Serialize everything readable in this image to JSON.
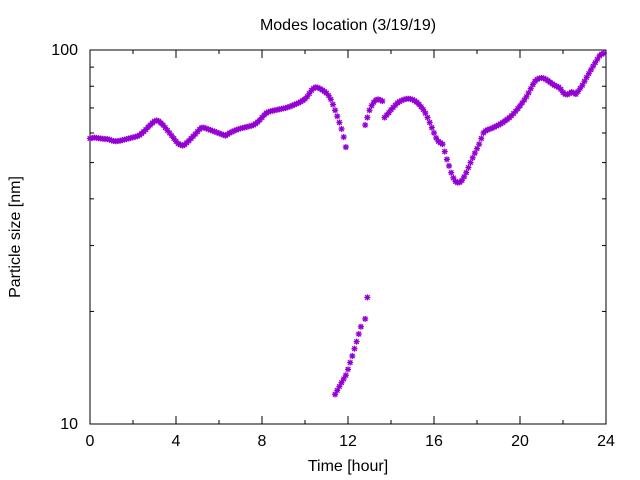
{
  "chart_data": {
    "type": "scatter",
    "title": "Modes location (3/19/19)",
    "xlabel": "Time [hour]",
    "ylabel": "Particle size [nm]",
    "xlim": [
      0,
      24
    ],
    "ylim": [
      10,
      100
    ],
    "y_scale": "log",
    "grid": false,
    "legend": "none",
    "marker_color": "#9400d3",
    "marker_shape": "asterisk",
    "x_ticks": [
      "0",
      "4",
      "8",
      "12",
      "16",
      "20",
      "24"
    ],
    "y_ticks": [
      "10",
      "100"
    ],
    "series": [
      {
        "points": [
          [
            0.0,
            58.0
          ],
          [
            0.1,
            58.2
          ],
          [
            0.2,
            58.3
          ],
          [
            0.3,
            58.2
          ],
          [
            0.4,
            58.1
          ],
          [
            0.5,
            58.0
          ],
          [
            0.6,
            57.9
          ],
          [
            0.7,
            57.8
          ],
          [
            0.8,
            57.8
          ],
          [
            0.9,
            57.6
          ],
          [
            1.0,
            57.3
          ],
          [
            1.1,
            57.1
          ],
          [
            1.2,
            57.0
          ],
          [
            1.3,
            57.1
          ],
          [
            1.4,
            57.2
          ],
          [
            1.5,
            57.4
          ],
          [
            1.6,
            57.6
          ],
          [
            1.7,
            57.8
          ],
          [
            1.8,
            58.0
          ],
          [
            1.9,
            58.2
          ],
          [
            2.0,
            58.4
          ],
          [
            2.1,
            58.6
          ],
          [
            2.2,
            58.8
          ],
          [
            2.3,
            59.2
          ],
          [
            2.4,
            59.8
          ],
          [
            2.5,
            60.5
          ],
          [
            2.6,
            61.3
          ],
          [
            2.7,
            62.2
          ],
          [
            2.8,
            63.0
          ],
          [
            2.9,
            63.8
          ],
          [
            3.0,
            64.5
          ],
          [
            3.1,
            64.8
          ],
          [
            3.2,
            64.5
          ],
          [
            3.3,
            63.8
          ],
          [
            3.4,
            63.0
          ],
          [
            3.5,
            62.0
          ],
          [
            3.6,
            61.0
          ],
          [
            3.7,
            60.0
          ],
          [
            3.8,
            59.0
          ],
          [
            3.9,
            58.0
          ],
          [
            4.0,
            57.0
          ],
          [
            4.1,
            56.2
          ],
          [
            4.2,
            55.8
          ],
          [
            4.3,
            55.5
          ],
          [
            4.4,
            55.8
          ],
          [
            4.5,
            56.5
          ],
          [
            4.6,
            57.2
          ],
          [
            4.7,
            58.0
          ],
          [
            4.8,
            58.8
          ],
          [
            4.9,
            59.6
          ],
          [
            5.0,
            60.5
          ],
          [
            5.1,
            61.4
          ],
          [
            5.2,
            62.0
          ],
          [
            5.3,
            62.0
          ],
          [
            5.4,
            61.7
          ],
          [
            5.5,
            61.4
          ],
          [
            5.6,
            61.1
          ],
          [
            5.7,
            60.8
          ],
          [
            5.8,
            60.5
          ],
          [
            5.9,
            60.2
          ],
          [
            6.0,
            59.9
          ],
          [
            6.1,
            59.6
          ],
          [
            6.2,
            59.3
          ],
          [
            6.3,
            59.0
          ],
          [
            6.4,
            59.5
          ],
          [
            6.5,
            60.0
          ],
          [
            6.6,
            60.4
          ],
          [
            6.7,
            60.8
          ],
          [
            6.8,
            61.1
          ],
          [
            6.9,
            61.4
          ],
          [
            7.0,
            61.7
          ],
          [
            7.1,
            61.9
          ],
          [
            7.2,
            62.1
          ],
          [
            7.3,
            62.3
          ],
          [
            7.4,
            62.5
          ],
          [
            7.5,
            62.7
          ],
          [
            7.6,
            63.0
          ],
          [
            7.7,
            63.5
          ],
          [
            7.8,
            64.2
          ],
          [
            7.9,
            65.0
          ],
          [
            8.0,
            66.0
          ],
          [
            8.1,
            67.0
          ],
          [
            8.2,
            67.8
          ],
          [
            8.3,
            68.3
          ],
          [
            8.4,
            68.6
          ],
          [
            8.5,
            68.8
          ],
          [
            8.6,
            69.0
          ],
          [
            8.7,
            69.2
          ],
          [
            8.8,
            69.4
          ],
          [
            8.9,
            69.6
          ],
          [
            9.0,
            69.8
          ],
          [
            9.1,
            70.0
          ],
          [
            9.2,
            70.3
          ],
          [
            9.3,
            70.6
          ],
          [
            9.4,
            71.0
          ],
          [
            9.5,
            71.4
          ],
          [
            9.6,
            71.8
          ],
          [
            9.7,
            72.2
          ],
          [
            9.8,
            72.7
          ],
          [
            9.9,
            73.3
          ],
          [
            10.0,
            74.0
          ],
          [
            10.1,
            75.0
          ],
          [
            10.2,
            76.5
          ],
          [
            10.3,
            78.0
          ],
          [
            10.4,
            79.0
          ],
          [
            10.5,
            79.5
          ],
          [
            10.6,
            79.3
          ],
          [
            10.7,
            78.8
          ],
          [
            10.8,
            78.2
          ],
          [
            10.9,
            77.5
          ],
          [
            11.0,
            76.7
          ],
          [
            11.1,
            75.5
          ],
          [
            11.2,
            73.8
          ],
          [
            11.3,
            71.5
          ],
          [
            11.4,
            69.0
          ],
          [
            11.5,
            66.5
          ],
          [
            11.6,
            64.0
          ],
          [
            11.7,
            61.5
          ],
          [
            11.8,
            58.5
          ],
          [
            11.9,
            55.0
          ],
          [
            11.4,
            12.0
          ],
          [
            11.5,
            12.3
          ],
          [
            11.6,
            12.6
          ],
          [
            11.7,
            12.9
          ],
          [
            11.8,
            13.2
          ],
          [
            11.9,
            13.5
          ],
          [
            12.0,
            14.0
          ],
          [
            12.1,
            14.6
          ],
          [
            12.2,
            15.2
          ],
          [
            12.3,
            15.9
          ],
          [
            12.4,
            16.6
          ],
          [
            12.5,
            17.4
          ],
          [
            12.6,
            18.2
          ],
          [
            12.8,
            19.1
          ],
          [
            12.9,
            21.8
          ],
          [
            12.8,
            63.0
          ],
          [
            12.9,
            66.0
          ],
          [
            13.0,
            69.0
          ],
          [
            13.1,
            71.0
          ],
          [
            13.2,
            72.5
          ],
          [
            13.3,
            73.5
          ],
          [
            13.4,
            73.8
          ],
          [
            13.5,
            73.5
          ],
          [
            13.6,
            73.0
          ],
          [
            13.7,
            66.0
          ],
          [
            13.8,
            67.0
          ],
          [
            13.9,
            68.0
          ],
          [
            14.0,
            69.2
          ],
          [
            14.1,
            70.2
          ],
          [
            14.2,
            71.2
          ],
          [
            14.3,
            72.2
          ],
          [
            14.4,
            72.8
          ],
          [
            14.5,
            73.3
          ],
          [
            14.6,
            73.7
          ],
          [
            14.7,
            74.0
          ],
          [
            14.8,
            74.1
          ],
          [
            14.9,
            74.0
          ],
          [
            15.0,
            73.7
          ],
          [
            15.1,
            73.2
          ],
          [
            15.2,
            72.5
          ],
          [
            15.3,
            71.6
          ],
          [
            15.4,
            70.5
          ],
          [
            15.5,
            69.3
          ],
          [
            15.6,
            67.8
          ],
          [
            15.7,
            66.0
          ],
          [
            15.8,
            64.0
          ],
          [
            15.9,
            62.0
          ],
          [
            16.0,
            60.0
          ],
          [
            16.1,
            58.2
          ],
          [
            16.2,
            57.0
          ],
          [
            16.3,
            56.5
          ],
          [
            16.4,
            56.0
          ],
          [
            16.5,
            53.5
          ],
          [
            16.6,
            51.0
          ],
          [
            16.7,
            49.0
          ],
          [
            16.8,
            47.0
          ],
          [
            16.9,
            45.5
          ],
          [
            17.0,
            44.5
          ],
          [
            17.1,
            44.2
          ],
          [
            17.2,
            44.3
          ],
          [
            17.3,
            44.8
          ],
          [
            17.4,
            45.8
          ],
          [
            17.5,
            47.0
          ],
          [
            17.6,
            48.5
          ],
          [
            17.7,
            50.0
          ],
          [
            17.8,
            51.5
          ],
          [
            17.9,
            53.0
          ],
          [
            18.0,
            54.5
          ],
          [
            18.1,
            56.0
          ],
          [
            18.2,
            58.0
          ],
          [
            18.3,
            60.0
          ],
          [
            18.4,
            60.8
          ],
          [
            18.5,
            61.2
          ],
          [
            18.6,
            61.5
          ],
          [
            18.7,
            61.8
          ],
          [
            18.8,
            62.2
          ],
          [
            18.9,
            62.6
          ],
          [
            19.0,
            63.0
          ],
          [
            19.1,
            63.5
          ],
          [
            19.2,
            64.0
          ],
          [
            19.3,
            64.6
          ],
          [
            19.4,
            65.2
          ],
          [
            19.5,
            65.9
          ],
          [
            19.6,
            66.7
          ],
          [
            19.7,
            67.6
          ],
          [
            19.8,
            68.6
          ],
          [
            19.9,
            69.7
          ],
          [
            20.0,
            70.9
          ],
          [
            20.1,
            72.2
          ],
          [
            20.2,
            73.5
          ],
          [
            20.3,
            75.0
          ],
          [
            20.4,
            76.8
          ],
          [
            20.5,
            78.8
          ],
          [
            20.6,
            80.8
          ],
          [
            20.7,
            82.5
          ],
          [
            20.8,
            83.5
          ],
          [
            20.9,
            84.0
          ],
          [
            21.0,
            84.2
          ],
          [
            21.1,
            84.0
          ],
          [
            21.2,
            83.5
          ],
          [
            21.3,
            82.8
          ],
          [
            21.4,
            82.0
          ],
          [
            21.5,
            81.2
          ],
          [
            21.6,
            80.5
          ],
          [
            21.7,
            80.0
          ],
          [
            21.8,
            79.5
          ],
          [
            21.9,
            78.5
          ],
          [
            22.0,
            77.0
          ],
          [
            22.1,
            76.2
          ],
          [
            22.2,
            76.0
          ],
          [
            22.3,
            76.5
          ],
          [
            22.4,
            77.2
          ],
          [
            22.5,
            76.8
          ],
          [
            22.6,
            76.2
          ],
          [
            22.7,
            77.5
          ],
          [
            22.8,
            79.0
          ],
          [
            22.9,
            80.5
          ],
          [
            23.0,
            82.5
          ],
          [
            23.1,
            84.5
          ],
          [
            23.2,
            86.5
          ],
          [
            23.3,
            88.5
          ],
          [
            23.4,
            90.5
          ],
          [
            23.5,
            92.5
          ],
          [
            23.6,
            94.5
          ],
          [
            23.7,
            96.5
          ],
          [
            23.8,
            97.5
          ],
          [
            23.9,
            98.0
          ]
        ]
      }
    ]
  }
}
